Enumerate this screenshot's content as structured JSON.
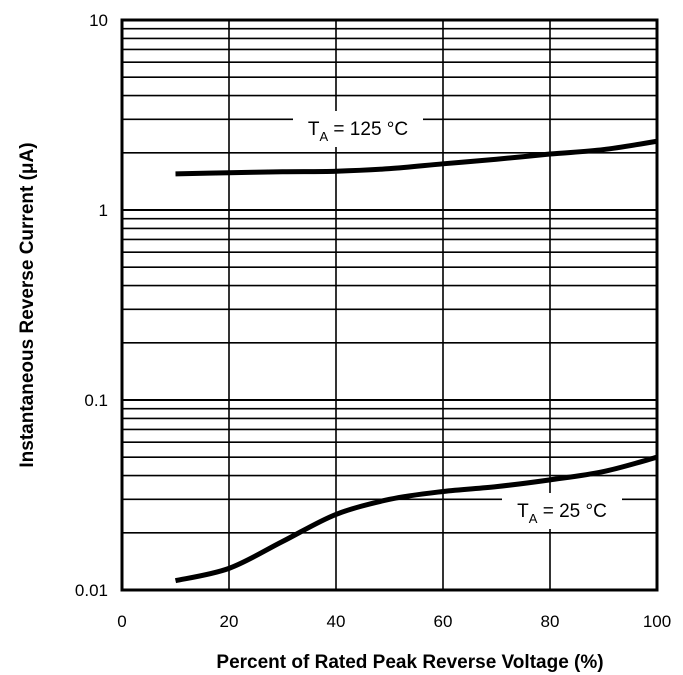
{
  "chart_data": {
    "type": "line",
    "x": [
      10,
      20,
      30,
      40,
      50,
      60,
      70,
      80,
      90,
      100
    ],
    "xlabel": "Percent of Rated Peak Reverse Voltage (%)",
    "ylabel": "Instantaneous Reverse Current (μA)",
    "xlim": [
      0,
      100
    ],
    "ylim": [
      0.01,
      10
    ],
    "yscale": "log",
    "grid": true,
    "xticks": [
      "0",
      "20",
      "40",
      "60",
      "80",
      "100"
    ],
    "yticks": [
      "0.01",
      "0.1",
      "1",
      "10"
    ],
    "series": [
      {
        "label_main": "T",
        "label_sub": "A",
        "label_rest": " = 125 °C",
        "values": [
          1.55,
          1.57,
          1.59,
          1.6,
          1.65,
          1.75,
          1.85,
          1.97,
          2.08,
          2.3
        ]
      },
      {
        "label_main": "T",
        "label_sub": "A",
        "label_rest": " = 25 °C",
        "values": [
          0.0112,
          0.013,
          0.018,
          0.025,
          0.03,
          0.033,
          0.035,
          0.038,
          0.042,
          0.05
        ]
      }
    ],
    "color": "#000000"
  }
}
